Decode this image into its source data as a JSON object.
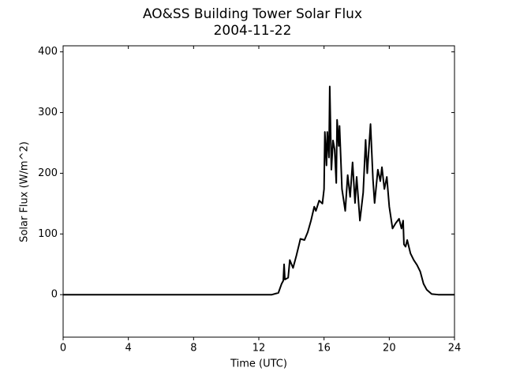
{
  "chart_data": {
    "type": "line",
    "title": "AO&SS Building Tower Solar Flux",
    "subtitle": "2004-11-22",
    "x_label": "Time (UTC)",
    "y_label": "Solar Flux (W/m^2)",
    "x": [
      0,
      12.8,
      13.2,
      13.4,
      13.5,
      13.55,
      13.6,
      13.8,
      13.9,
      14.1,
      14.3,
      14.5,
      14.55,
      14.8,
      15.0,
      15.2,
      15.4,
      15.5,
      15.7,
      15.9,
      16.0,
      16.05,
      16.15,
      16.2,
      16.3,
      16.35,
      16.45,
      16.55,
      16.65,
      16.75,
      16.8,
      16.9,
      16.95,
      17.1,
      17.3,
      17.45,
      17.6,
      17.75,
      17.9,
      18.0,
      18.2,
      18.4,
      18.55,
      18.65,
      18.85,
      19.0,
      19.1,
      19.3,
      19.45,
      19.55,
      19.7,
      19.85,
      20.0,
      20.2,
      20.4,
      20.6,
      20.75,
      20.85,
      20.9,
      21.0,
      21.1,
      21.3,
      21.5,
      21.7,
      21.9,
      22.1,
      22.3,
      22.6,
      23,
      24
    ],
    "series": [
      {
        "name": "Solar Flux",
        "color": "#000000",
        "values": [
          0,
          0,
          3,
          18,
          23,
          50,
          25,
          28,
          57,
          44,
          64,
          86,
          92,
          90,
          103,
          122,
          145,
          138,
          155,
          150,
          174,
          268,
          213,
          268,
          226,
          343,
          206,
          254,
          239,
          184,
          288,
          245,
          278,
          174,
          138,
          197,
          161,
          218,
          151,
          194,
          122,
          168,
          255,
          200,
          281,
          190,
          151,
          206,
          187,
          210,
          174,
          194,
          145,
          109,
          118,
          125,
          109,
          122,
          83,
          79,
          90,
          68,
          57,
          49,
          38,
          18,
          8,
          1,
          0,
          0
        ]
      }
    ],
    "xlim": [
      0,
      24
    ],
    "xticks": [
      0,
      4,
      8,
      12,
      16,
      20,
      24
    ],
    "ylim": [
      -70,
      410
    ],
    "yticks": [
      0,
      100,
      200,
      300,
      400
    ]
  }
}
